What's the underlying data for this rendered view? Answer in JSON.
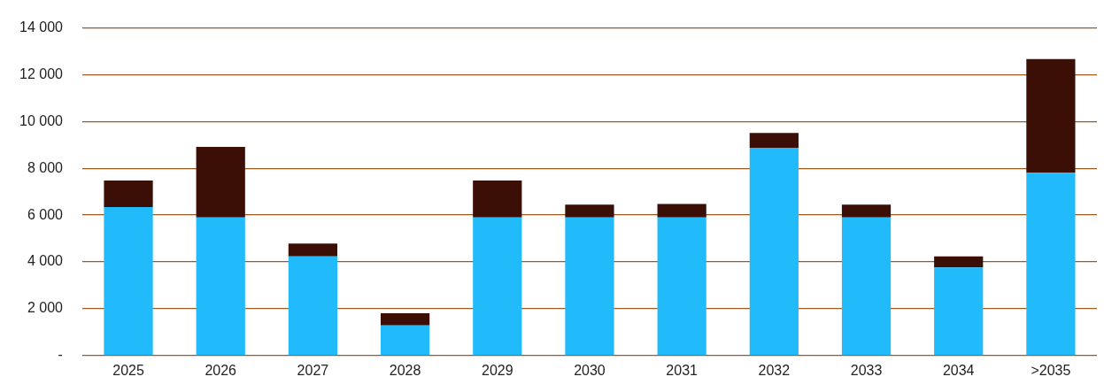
{
  "chart_data": {
    "type": "bar",
    "stacked": true,
    "grid": true,
    "categories": [
      "2025",
      "2026",
      "2027",
      "2028",
      "2029",
      "2030",
      "2031",
      "2032",
      "2033",
      "2034",
      ">2035"
    ],
    "series": [
      {
        "color": "#21bbfc",
        "values": [
          6350,
          5900,
          4240,
          1290,
          5900,
          5900,
          5900,
          8880,
          5900,
          3760,
          7810
        ]
      },
      {
        "color": "#3b0f06",
        "values": [
          1130,
          3020,
          550,
          520,
          1580,
          550,
          580,
          630,
          550,
          480,
          4860
        ]
      }
    ],
    "ylim": [
      0,
      14000
    ],
    "yticks": [
      {
        "value": 0,
        "label": "-"
      },
      {
        "value": 2000,
        "label": "2 000"
      },
      {
        "value": 4000,
        "label": "4 000"
      },
      {
        "value": 6000,
        "label": "6 000"
      },
      {
        "value": 8000,
        "label": "8 000"
      },
      {
        "value": 10000,
        "label": "10 000"
      },
      {
        "value": 12000,
        "label": "12 000"
      },
      {
        "value": 14000,
        "label": "14 000"
      }
    ]
  }
}
